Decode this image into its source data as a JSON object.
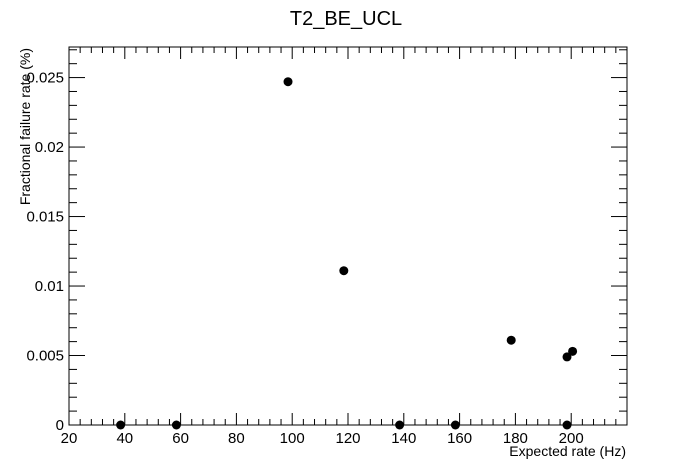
{
  "chart_data": {
    "type": "scatter",
    "title": "T2_BE_UCL",
    "xlabel": "Expected rate (Hz)",
    "ylabel": "Fractional failure rate (%)",
    "xlim": [
      20,
      220
    ],
    "ylim": [
      0,
      0.0272
    ],
    "x_ticks": [
      20,
      40,
      60,
      80,
      100,
      120,
      140,
      160,
      180,
      200
    ],
    "x_tick_labels": [
      "20",
      "40",
      "60",
      "80",
      "100",
      "120",
      "140",
      "160",
      "180",
      "200"
    ],
    "y_ticks": [
      0,
      0.005,
      0.01,
      0.015,
      0.02,
      0.025
    ],
    "y_tick_labels": [
      "0",
      "0.005",
      "0.01",
      "0.015",
      "0.02",
      "0.025"
    ],
    "grid": false,
    "marker_color": "#000000",
    "points": [
      {
        "x": 38.5,
        "y": 0
      },
      {
        "x": 58.5,
        "y": 0
      },
      {
        "x": 98.5,
        "y": 0.0247
      },
      {
        "x": 118.5,
        "y": 0.0111
      },
      {
        "x": 138.5,
        "y": 0
      },
      {
        "x": 158.5,
        "y": 0
      },
      {
        "x": 178.5,
        "y": 0.0061
      },
      {
        "x": 198.5,
        "y": 0.0049
      },
      {
        "x": 200.5,
        "y": 0.0053
      },
      {
        "x": 198.5,
        "y": 0
      }
    ]
  }
}
